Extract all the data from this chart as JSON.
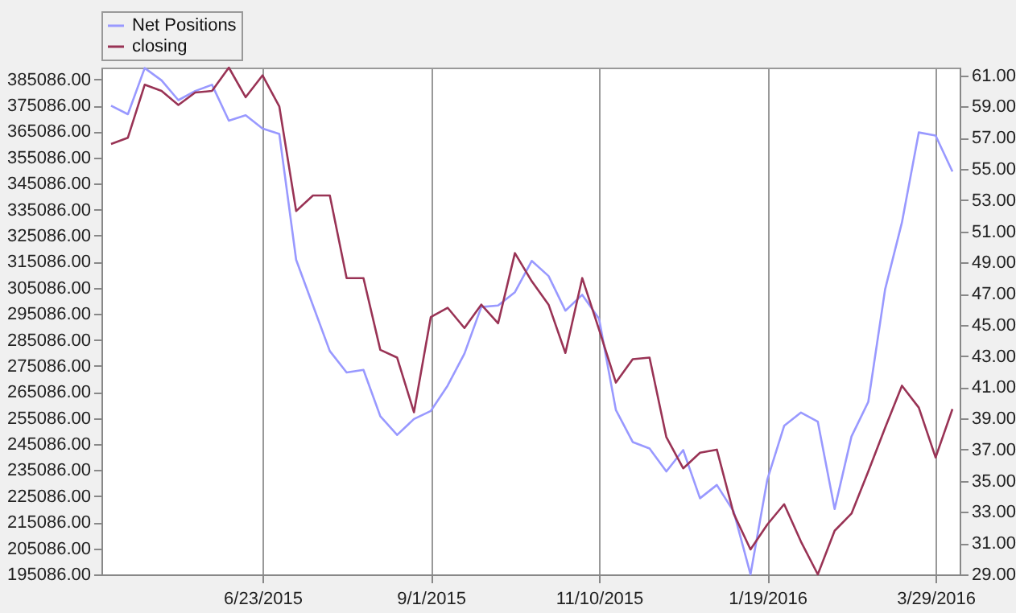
{
  "chart_data": {
    "type": "line",
    "x": [
      "2015-04-21",
      "2015-04-28",
      "2015-05-05",
      "2015-05-12",
      "2015-05-19",
      "2015-05-26",
      "2015-06-02",
      "2015-06-09",
      "2015-06-16",
      "2015-06-23",
      "2015-06-30",
      "2015-07-07",
      "2015-07-14",
      "2015-07-21",
      "2015-07-28",
      "2015-08-04",
      "2015-08-11",
      "2015-08-18",
      "2015-08-25",
      "2015-09-01",
      "2015-09-08",
      "2015-09-15",
      "2015-09-22",
      "2015-09-29",
      "2015-10-06",
      "2015-10-13",
      "2015-10-20",
      "2015-10-27",
      "2015-11-03",
      "2015-11-10",
      "2015-11-17",
      "2015-11-24",
      "2015-12-01",
      "2015-12-08",
      "2015-12-15",
      "2015-12-22",
      "2015-12-29",
      "2016-01-05",
      "2016-01-12",
      "2016-01-19",
      "2016-01-26",
      "2016-02-02",
      "2016-02-09",
      "2016-02-16",
      "2016-02-23",
      "2016-03-01",
      "2016-03-08",
      "2016-03-15",
      "2016-03-22",
      "2016-03-29",
      "2016-04-05"
    ],
    "series": [
      {
        "name": "Net Positions",
        "color": "#9999ff",
        "values": [
          375000,
          371700,
          389400,
          384700,
          377100,
          380600,
          383000,
          369200,
          371300,
          366200,
          364100,
          315800,
          298300,
          280800,
          272600,
          273600,
          255800,
          248600,
          254700,
          257800,
          267500,
          279800,
          297700,
          298300,
          303400,
          315400,
          309600,
          296300,
          302400,
          293200,
          258200,
          245900,
          243400,
          234600,
          242800,
          224300,
          229400,
          219200,
          195100,
          231500,
          252100,
          257200,
          253700,
          220200,
          248000,
          261300,
          304500,
          330200,
          364700,
          363500,
          349700
        ]
      },
      {
        "name": "closing",
        "color": "#993355",
        "axis": "y2",
        "values": [
          56.6,
          57.0,
          60.4,
          60.0,
          59.1,
          59.9,
          60.0,
          61.5,
          59.6,
          61.0,
          59.0,
          52.3,
          53.3,
          53.3,
          48.0,
          48.0,
          43.4,
          42.9,
          39.4,
          45.5,
          46.1,
          44.8,
          46.3,
          45.1,
          49.6,
          47.8,
          46.3,
          43.2,
          48.0,
          44.7,
          41.3,
          42.8,
          42.9,
          37.8,
          35.8,
          36.8,
          37.0,
          32.9,
          30.6,
          32.2,
          33.5,
          31.1,
          29.0,
          31.8,
          32.9,
          35.6,
          38.4,
          41.1,
          39.7,
          36.5,
          39.6
        ]
      }
    ],
    "xlim": [
      "2015-04-17",
      "2016-04-08"
    ],
    "xticks": [
      {
        "value": "2015-06-23",
        "label": "6/23/2015"
      },
      {
        "value": "2015-09-01",
        "label": "9/1/2015"
      },
      {
        "value": "2015-11-10",
        "label": "11/10/2015"
      },
      {
        "value": "2016-01-19",
        "label": "1/19/2016"
      },
      {
        "value": "2016-03-29",
        "label": "3/29/2016"
      }
    ],
    "ylim": [
      195086,
      389600
    ],
    "yticks": [
      {
        "value": 195086,
        "label": "195086.00"
      },
      {
        "value": 205086,
        "label": "205086.00"
      },
      {
        "value": 215086,
        "label": "215086.00"
      },
      {
        "value": 225086,
        "label": "225086.00"
      },
      {
        "value": 235086,
        "label": "235086.00"
      },
      {
        "value": 245086,
        "label": "245086.00"
      },
      {
        "value": 255086,
        "label": "255086.00"
      },
      {
        "value": 265086,
        "label": "265086.00"
      },
      {
        "value": 275086,
        "label": "275086.00"
      },
      {
        "value": 285086,
        "label": "285086.00"
      },
      {
        "value": 295086,
        "label": "295086.00"
      },
      {
        "value": 305086,
        "label": "305086.00"
      },
      {
        "value": 315086,
        "label": "315086.00"
      },
      {
        "value": 325086,
        "label": "325086.00"
      },
      {
        "value": 335086,
        "label": "335086.00"
      },
      {
        "value": 345086,
        "label": "345086.00"
      },
      {
        "value": 355086,
        "label": "355086.00"
      },
      {
        "value": 365086,
        "label": "365086.00"
      },
      {
        "value": 375086,
        "label": "375086.00"
      },
      {
        "value": 385086,
        "label": "385086.00"
      }
    ],
    "y2lim": [
      29,
      61.5
    ],
    "y2ticks": [
      {
        "value": 29,
        "label": "29.00"
      },
      {
        "value": 31,
        "label": "31.00"
      },
      {
        "value": 33,
        "label": "33.00"
      },
      {
        "value": 35,
        "label": "35.00"
      },
      {
        "value": 37,
        "label": "37.00"
      },
      {
        "value": 39,
        "label": "39.00"
      },
      {
        "value": 41,
        "label": "41.00"
      },
      {
        "value": 43,
        "label": "43.00"
      },
      {
        "value": 45,
        "label": "45.00"
      },
      {
        "value": 47,
        "label": "47.00"
      },
      {
        "value": 49,
        "label": "49.00"
      },
      {
        "value": 51,
        "label": "51.00"
      },
      {
        "value": 53,
        "label": "53.00"
      },
      {
        "value": 55,
        "label": "55.00"
      },
      {
        "value": 57,
        "label": "57.00"
      },
      {
        "value": 59,
        "label": "59.00"
      },
      {
        "value": 61,
        "label": "61.00"
      }
    ],
    "grid": "x",
    "legend": "top",
    "line_style": "solid"
  }
}
